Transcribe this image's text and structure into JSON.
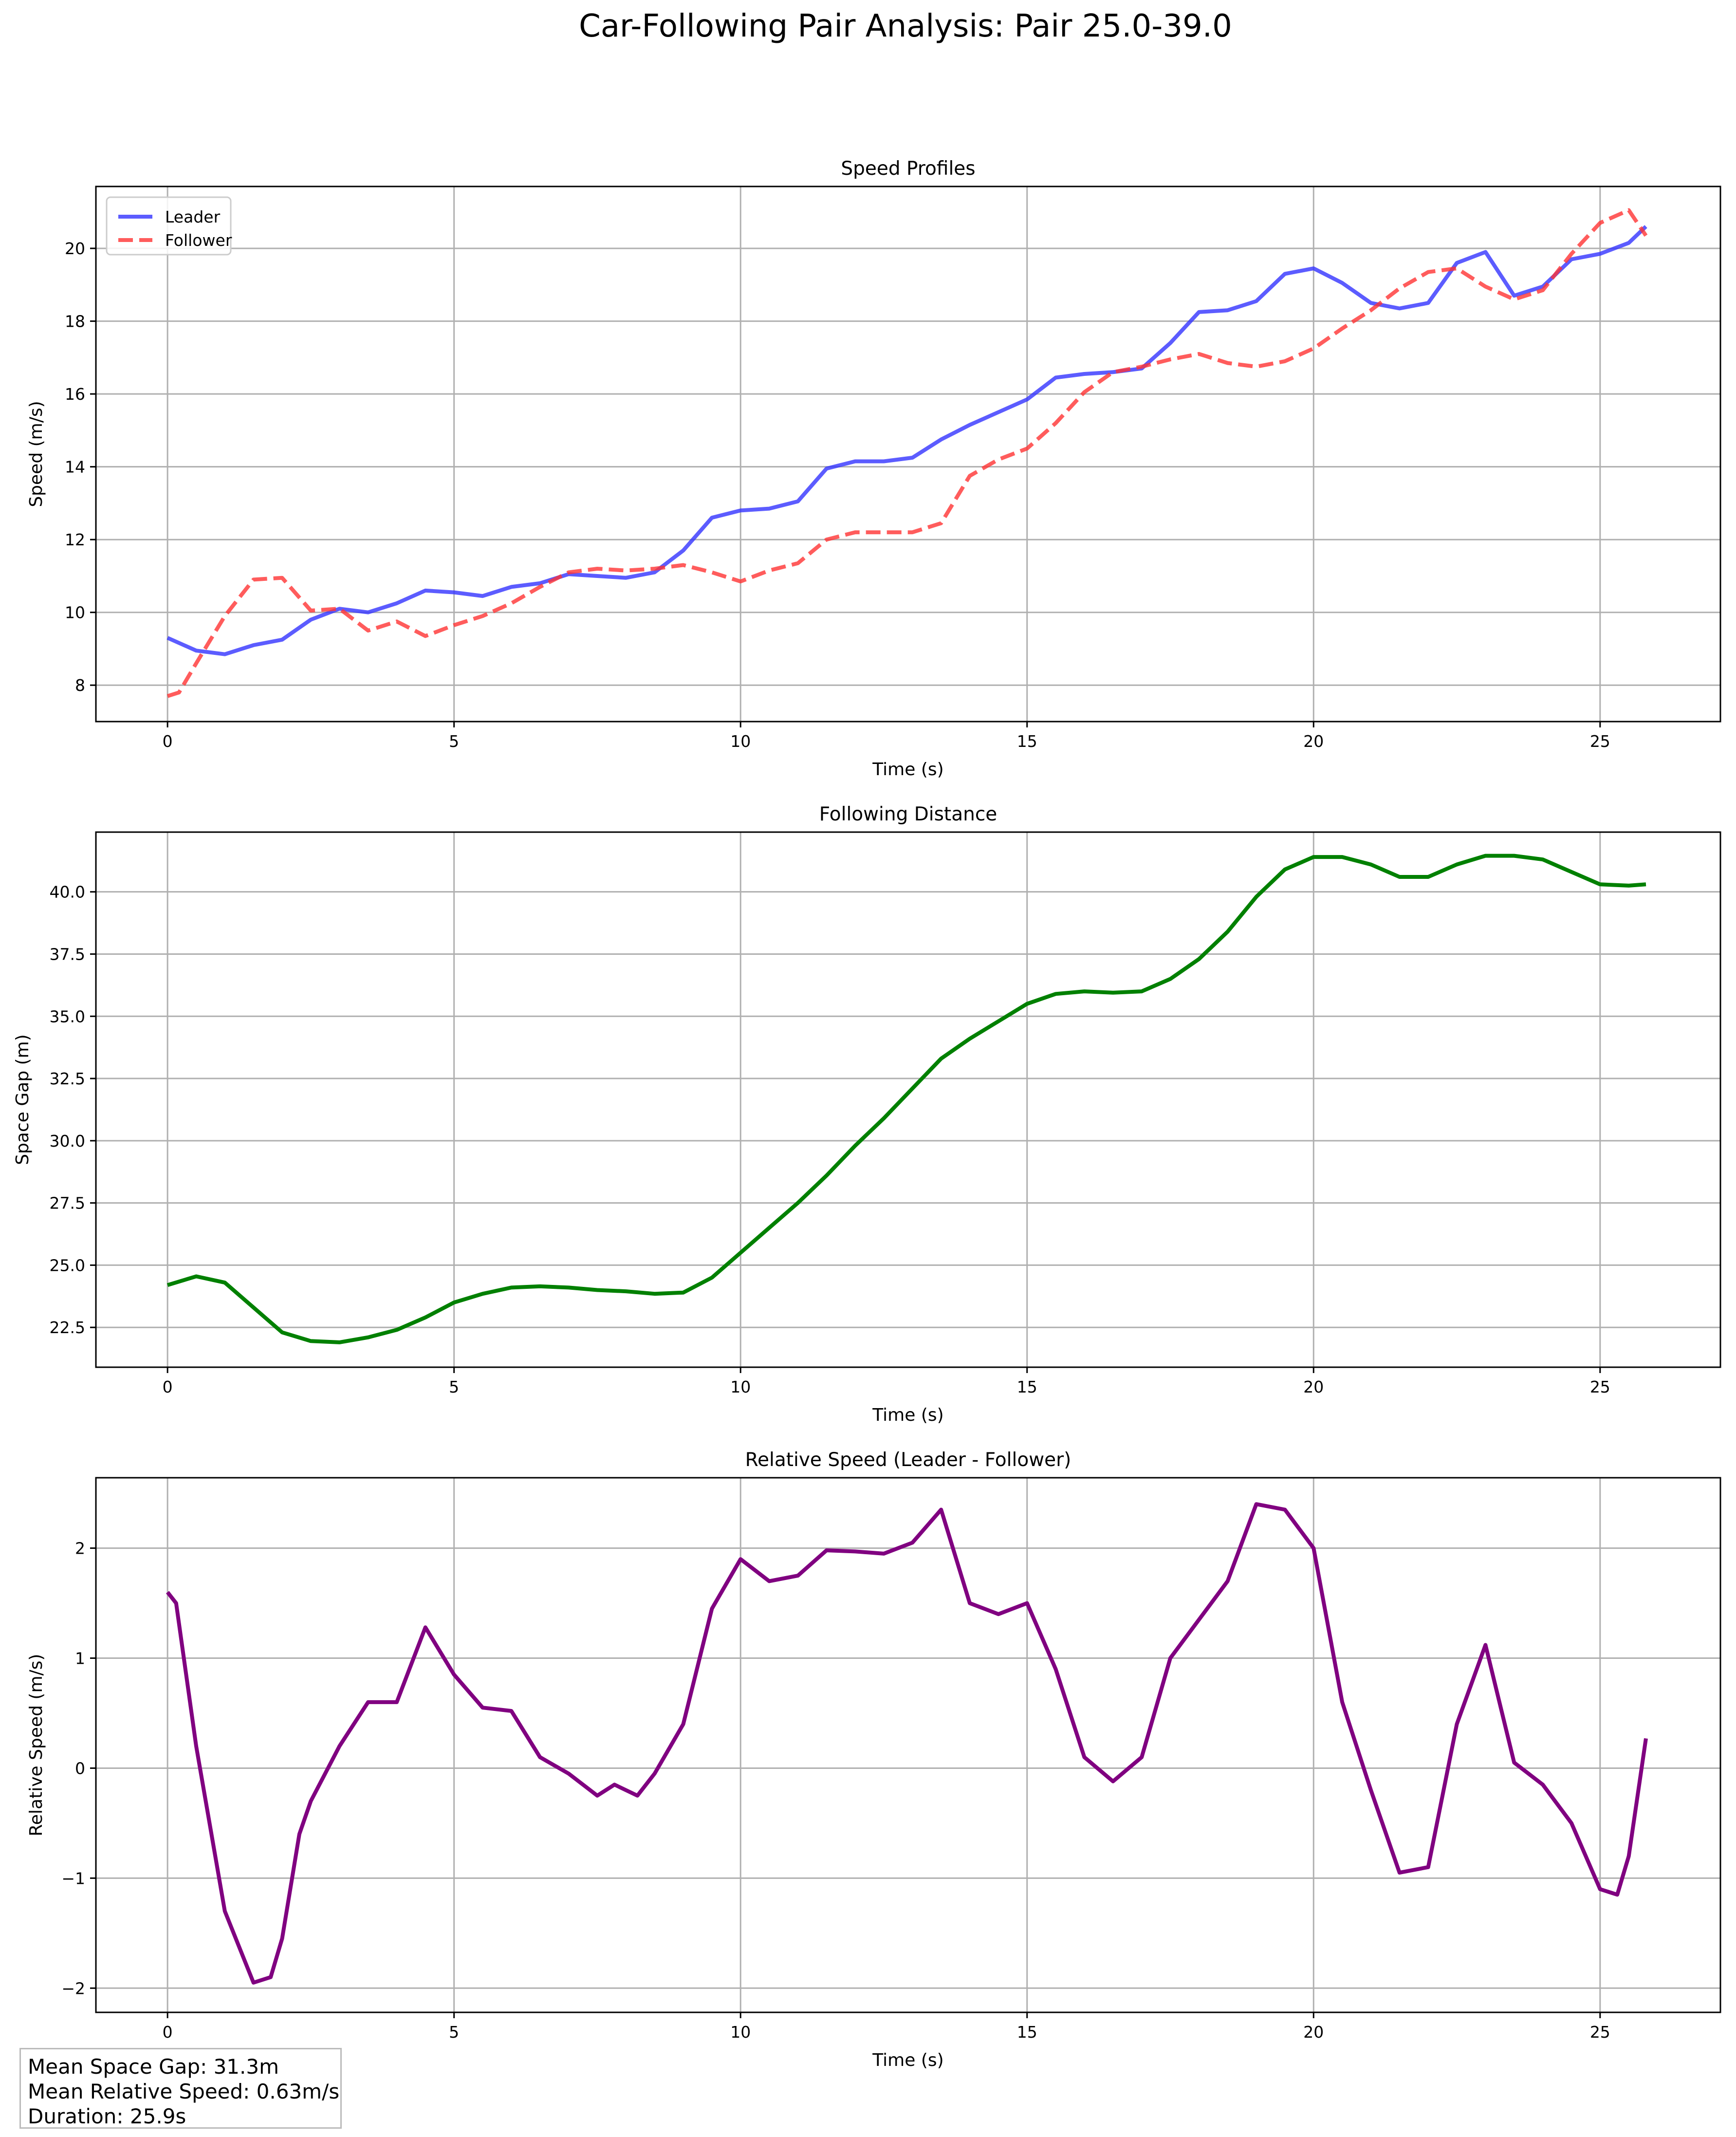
{
  "figure_title": "Car-Following Pair Analysis: Pair 25.0-39.0",
  "stats": {
    "mean_space_gap": "Mean Space Gap: 31.3m",
    "mean_relative_speed": "Mean Relative Speed: 0.63m/s",
    "duration": "Duration: 25.9s"
  },
  "chart_data": [
    {
      "type": "line",
      "title": "Speed Profiles",
      "xlabel": "Time (s)",
      "ylabel": "Speed (m/s)",
      "xlim": [
        -1.25,
        27.1
      ],
      "ylim": [
        7.0,
        21.7
      ],
      "xticks": [
        0,
        5,
        10,
        15,
        20,
        25
      ],
      "yticks": [
        8,
        10,
        12,
        14,
        16,
        18,
        20
      ],
      "tick_decimals": 0,
      "grid": true,
      "legend": "top-left",
      "series": [
        {
          "name": "Leader",
          "color": "#3333ff",
          "dash": "solid",
          "x": [
            0,
            0.5,
            1,
            1.5,
            2,
            2.5,
            3,
            3.5,
            4,
            4.5,
            5,
            5.5,
            6,
            6.5,
            7,
            7.5,
            8,
            8.5,
            9,
            9.5,
            10,
            10.5,
            11,
            11.5,
            12,
            12.5,
            13,
            13.5,
            14,
            14.5,
            15,
            15.5,
            16,
            16.5,
            17,
            17.5,
            18,
            18.5,
            19,
            19.5,
            20,
            20.5,
            21,
            21.5,
            22,
            22.5,
            23,
            23.5,
            24,
            24.5,
            25,
            25.5,
            25.8
          ],
          "y": [
            9.3,
            8.95,
            8.85,
            9.1,
            9.25,
            9.8,
            10.1,
            10.0,
            10.25,
            10.6,
            10.55,
            10.45,
            10.7,
            10.8,
            11.05,
            11.0,
            10.95,
            11.1,
            11.7,
            12.6,
            12.8,
            12.85,
            13.05,
            13.95,
            14.15,
            14.15,
            14.25,
            14.75,
            15.15,
            15.5,
            15.85,
            16.45,
            16.55,
            16.6,
            16.7,
            17.4,
            18.25,
            18.3,
            18.55,
            19.3,
            19.45,
            19.05,
            18.5,
            18.35,
            18.5,
            19.6,
            19.9,
            18.7,
            18.95,
            19.7,
            19.85,
            20.15,
            20.6
          ]
        },
        {
          "name": "Follower",
          "color": "#ff3333",
          "dash": "dashed",
          "x": [
            0,
            0.2,
            0.5,
            1,
            1.5,
            2,
            2.5,
            3,
            3.5,
            4,
            4.5,
            5,
            5.5,
            6,
            6.5,
            7,
            7.5,
            8,
            8.5,
            9,
            9.5,
            10,
            10.5,
            11,
            11.5,
            12,
            12.5,
            13,
            13.5,
            14,
            14.5,
            15,
            15.5,
            16,
            16.5,
            17,
            17.5,
            18,
            18.5,
            19,
            19.5,
            20,
            20.5,
            21,
            21.5,
            22,
            22.5,
            23,
            23.5,
            24,
            24.5,
            25,
            25.5,
            25.8
          ],
          "y": [
            7.7,
            7.8,
            8.6,
            9.9,
            10.9,
            10.95,
            10.05,
            10.1,
            9.5,
            9.75,
            9.35,
            9.65,
            9.9,
            10.25,
            10.7,
            11.1,
            11.2,
            11.15,
            11.2,
            11.3,
            11.1,
            10.85,
            11.15,
            11.35,
            12.0,
            12.2,
            12.2,
            12.2,
            12.45,
            13.75,
            14.2,
            14.5,
            15.2,
            16.05,
            16.6,
            16.75,
            16.95,
            17.1,
            16.85,
            16.75,
            16.9,
            17.25,
            17.8,
            18.3,
            18.9,
            19.35,
            19.45,
            18.95,
            18.6,
            18.85,
            19.85,
            20.7,
            21.05,
            20.35
          ]
        }
      ]
    },
    {
      "type": "line",
      "title": "Following Distance",
      "xlabel": "Time (s)",
      "ylabel": "Space Gap (m)",
      "xlim": [
        -1.25,
        27.1
      ],
      "ylim": [
        20.9,
        42.4
      ],
      "xticks": [
        0,
        5,
        10,
        15,
        20,
        25
      ],
      "yticks": [
        22.5,
        25.0,
        27.5,
        30.0,
        32.5,
        35.0,
        37.5,
        40.0
      ],
      "tick_decimals": 1,
      "grid": true,
      "legend": "none",
      "series": [
        {
          "color": "#008000",
          "dash": "solid",
          "x": [
            0,
            0.5,
            1,
            1.5,
            2,
            2.5,
            3,
            3.5,
            4,
            4.5,
            5,
            5.5,
            6,
            6.5,
            7,
            7.5,
            8,
            8.5,
            9,
            9.5,
            10,
            10.5,
            11,
            11.5,
            12,
            12.5,
            13,
            13.5,
            14,
            14.5,
            15,
            15.5,
            16,
            16.5,
            17,
            17.5,
            18,
            18.5,
            19,
            19.5,
            20,
            20.5,
            21,
            21.5,
            22,
            22.5,
            23,
            23.5,
            24,
            24.5,
            25,
            25.5,
            25.8
          ],
          "y": [
            24.2,
            24.55,
            24.3,
            23.3,
            22.3,
            21.95,
            21.9,
            22.1,
            22.4,
            22.9,
            23.5,
            23.85,
            24.1,
            24.15,
            24.1,
            24.0,
            23.95,
            23.85,
            23.9,
            24.5,
            25.5,
            26.5,
            27.5,
            28.6,
            29.8,
            30.9,
            32.1,
            33.3,
            34.1,
            34.8,
            35.5,
            35.9,
            36.0,
            35.95,
            36.0,
            36.5,
            37.3,
            38.4,
            39.8,
            40.9,
            41.4,
            41.4,
            41.1,
            40.6,
            40.6,
            41.1,
            41.45,
            41.45,
            41.3,
            40.8,
            40.3,
            40.25,
            40.3
          ]
        }
      ]
    },
    {
      "type": "line",
      "title": "Relative Speed (Leader - Follower)",
      "xlabel": "Time (s)",
      "ylabel": "Relative Speed (m/s)",
      "xlim": [
        -1.25,
        27.1
      ],
      "ylim": [
        -2.22,
        2.64
      ],
      "xticks": [
        0,
        5,
        10,
        15,
        20,
        25
      ],
      "yticks": [
        -2,
        -1,
        0,
        1,
        2
      ],
      "tick_decimals": 0,
      "grid": true,
      "legend": "none",
      "series": [
        {
          "color": "#800080",
          "dash": "solid",
          "x": [
            0,
            0.15,
            0.5,
            1,
            1.5,
            1.8,
            2,
            2.3,
            2.5,
            3,
            3.5,
            4,
            4.5,
            5,
            5.5,
            6,
            6.5,
            7,
            7.5,
            7.8,
            8.2,
            8.5,
            9,
            9.5,
            10,
            10.5,
            11,
            11.5,
            12,
            12.5,
            13,
            13.5,
            14,
            14.5,
            15,
            15.5,
            16,
            16.5,
            17,
            17.5,
            18,
            18.5,
            19,
            19.5,
            20,
            20.5,
            21,
            21.5,
            22,
            22.5,
            23,
            23.5,
            24,
            24.5,
            25,
            25.3,
            25.5,
            25.8
          ],
          "y": [
            1.6,
            1.5,
            0.2,
            -1.3,
            -1.95,
            -1.9,
            -1.55,
            -0.6,
            -0.3,
            0.2,
            0.6,
            0.6,
            1.28,
            0.85,
            0.55,
            0.52,
            0.1,
            -0.05,
            -0.25,
            -0.15,
            -0.25,
            -0.05,
            0.4,
            1.45,
            1.9,
            1.7,
            1.75,
            1.98,
            1.97,
            1.95,
            2.05,
            2.35,
            1.5,
            1.4,
            1.5,
            0.9,
            0.1,
            -0.12,
            0.1,
            1.0,
            1.35,
            1.7,
            2.4,
            2.35,
            2.0,
            0.6,
            -0.2,
            -0.95,
            -0.9,
            0.4,
            1.12,
            0.05,
            -0.15,
            -0.5,
            -1.1,
            -1.15,
            -0.8,
            0.27
          ]
        }
      ]
    }
  ]
}
